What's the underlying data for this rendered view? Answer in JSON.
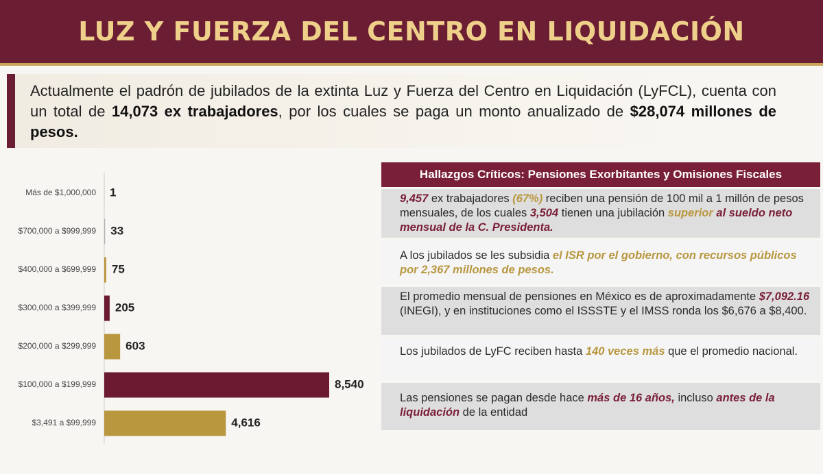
{
  "header": {
    "title": "LUZ Y FUERZA DEL CENTRO EN LIQUIDACIÓN"
  },
  "intro": {
    "segments": [
      "Actualmente el padrón de jubilados de la extinta Luz y Fuerza del Centro en Liquidación (LyFCL), cuenta con un total de ",
      "14,073 ex trabajadores",
      ", por los cuales se paga un monto anualizado de ",
      "$28,074 millones de pesos."
    ]
  },
  "chart_data": {
    "type": "bar",
    "orientation": "horizontal",
    "categories": [
      "Más de $1,000,000",
      "$700,000 a $999,999",
      "$400,000 a $699,999",
      "$300,000 a $399,999",
      "$200,000 a $299,999",
      "$100,000 a $199,999",
      "$3,491 a $99,999"
    ],
    "values": [
      1,
      33,
      75,
      205,
      603,
      8540,
      4616
    ],
    "value_labels": [
      "1",
      "33",
      "75",
      "205",
      "603",
      "8,540",
      "4,616"
    ],
    "colors": [
      "#6b1a30",
      "#b0b0b0",
      "#b8973f",
      "#6b1a30",
      "#b8973f",
      "#6b1a30",
      "#b8973f"
    ]
  },
  "findings": {
    "title": "Hallazgos Críticos: Pensiones Exorbitantes y Omisiones Fiscales",
    "items": [
      [
        "9,457",
        " ex trabajadores ",
        "(67%)",
        " reciben una pensión de 100 mil a 1 millón de pesos mensuales, de los cuales ",
        "3,504",
        " tienen una jubilación ",
        "superior",
        " al sueldo neto mensual de la C. Presidenta."
      ],
      [
        "A los jubilados se les subsidia ",
        "el ISR por el gobierno, con recursos públicos por 2,367 millones de pesos."
      ],
      [
        "El promedio mensual de pensiones en México es de aproximadamente ",
        "$7,092.16",
        " (INEGI), y en instituciones como  el ISSSTE y el IMSS ronda los $6,676 a $8,400."
      ],
      [
        "Los jubilados de LyFC reciben hasta ",
        "140 veces más",
        " que el promedio nacional."
      ],
      [
        "Las pensiones se pagan desde hace ",
        "más de 16 años,",
        " incluso ",
        "antes de la liquidación",
        " de la entidad"
      ]
    ]
  }
}
